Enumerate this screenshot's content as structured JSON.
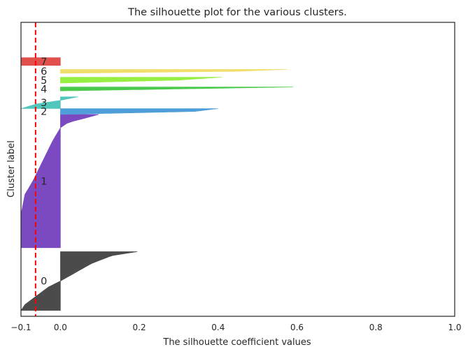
{
  "chart_data": {
    "type": "silhouette",
    "title": "The silhouette plot for the various clusters.",
    "xlabel": "The silhouette coefficient values",
    "ylabel": "Cluster label",
    "xlim": [
      -0.1,
      1.0
    ],
    "xticks": [
      -0.1,
      0.0,
      0.2,
      0.4,
      0.6,
      0.8,
      1.0
    ],
    "xtick_labels": [
      "−0.1",
      "0.0",
      "0.2",
      "0.4",
      "0.6",
      "0.8",
      "1.0"
    ],
    "ylim": [
      0,
      75
    ],
    "average_silhouette_score": -0.063,
    "grid": false,
    "clusters": [
      {
        "label": "0",
        "color": "#4b4b4b",
        "y_lower": 1.5,
        "y_upper": 16.5,
        "profile": [
          [
            0,
            0.195
          ],
          [
            0.07,
            0.13
          ],
          [
            0.2,
            0.08
          ],
          [
            0.35,
            0.04
          ],
          [
            0.5,
            0.0
          ],
          [
            0.6,
            -0.03
          ],
          [
            0.8,
            -0.07
          ],
          [
            0.9,
            -0.09
          ],
          [
            1,
            -0.1
          ]
        ]
      },
      {
        "label": "1",
        "color": "#7b49c0",
        "y_lower": 17.5,
        "y_upper": 51.5,
        "profile": [
          [
            0,
            0.097
          ],
          [
            0.03,
            0.06
          ],
          [
            0.06,
            0.02
          ],
          [
            0.1,
            0.0
          ],
          [
            0.2,
            -0.02
          ],
          [
            0.35,
            -0.045
          ],
          [
            0.5,
            -0.07
          ],
          [
            0.6,
            -0.09
          ],
          [
            0.75,
            -0.1
          ],
          [
            1,
            -0.1
          ]
        ]
      },
      {
        "label": "2",
        "color": "#4f9ed9",
        "y_lower": 51.5,
        "y_upper": 53.0,
        "profile": [
          [
            0,
            0.4
          ],
          [
            0.5,
            0.34
          ],
          [
            1,
            0.0
          ]
        ]
      },
      {
        "label": "3",
        "color": "#50c6bc",
        "y_lower": 53.0,
        "y_upper": 56.0,
        "profile": [
          [
            0,
            0.045
          ],
          [
            0.3,
            0.0
          ],
          [
            0.6,
            -0.06
          ],
          [
            1,
            -0.1
          ]
        ]
      },
      {
        "label": "4",
        "color": "#4ac94a",
        "y_lower": 57.5,
        "y_upper": 58.5,
        "profile": [
          [
            0,
            0.59
          ],
          [
            0.5,
            0.3
          ],
          [
            1,
            0.0
          ]
        ]
      },
      {
        "label": "5",
        "color": "#98ef43",
        "y_lower": 59.5,
        "y_upper": 61.0,
        "profile": [
          [
            0,
            0.41
          ],
          [
            0.5,
            0.3
          ],
          [
            1,
            0.0
          ]
        ]
      },
      {
        "label": "6",
        "color": "#f1de6c",
        "y_lower": 62.0,
        "y_upper": 63.0,
        "profile": [
          [
            0,
            0.575
          ],
          [
            0.5,
            0.45
          ],
          [
            1,
            0.0
          ]
        ]
      },
      {
        "label": "7",
        "color": "#e2504e",
        "y_lower": 64.0,
        "y_upper": 66.0,
        "profile": [
          [
            0,
            -0.1
          ],
          [
            1,
            -0.1
          ]
        ]
      }
    ],
    "cluster_labels": [
      "0",
      "1",
      "2",
      "3",
      "4",
      "5",
      "6",
      "7"
    ]
  }
}
